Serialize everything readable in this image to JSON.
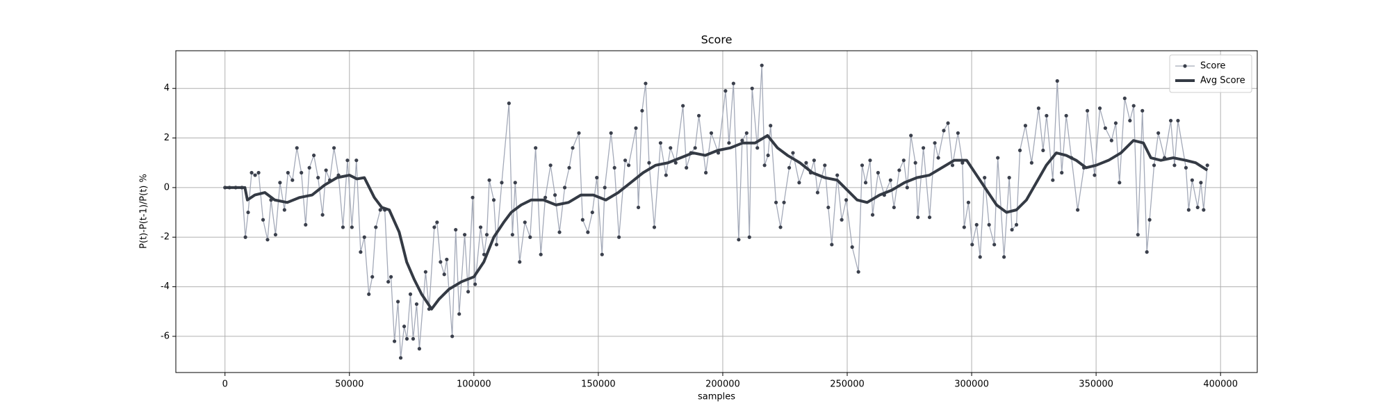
{
  "chart_data": {
    "type": "line",
    "title": "Score",
    "x_label": "samples",
    "y_label": "P(t)-P(t-1)/P(t) %",
    "xlim": [
      -19750,
      414750
    ],
    "ylim": [
      -7.46,
      5.52
    ],
    "xticks": [
      0,
      50000,
      100000,
      150000,
      200000,
      250000,
      300000,
      350000,
      400000
    ],
    "yticks": [
      -6,
      -4,
      -2,
      0,
      2,
      4
    ],
    "grid": true,
    "legend": "upper right",
    "series": [
      {
        "name": "Score",
        "color": "#a3a9b8",
        "marker_color": "#3b404c",
        "marker": true,
        "width": 1.3,
        "x": [
          0,
          1800,
          4300,
          6800,
          8200,
          9300,
          10700,
          12100,
          13500,
          15300,
          17100,
          18500,
          20300,
          22100,
          23900,
          25300,
          27100,
          28900,
          30700,
          32400,
          33900,
          35700,
          37400,
          39200,
          40600,
          42100,
          43800,
          45600,
          47400,
          49200,
          51000,
          52800,
          54500,
          56000,
          57800,
          59200,
          60600,
          62400,
          64200,
          65600,
          66700,
          68100,
          69500,
          70600,
          72000,
          73100,
          74500,
          75600,
          77000,
          78100,
          80600,
          82000,
          84100,
          85200,
          86600,
          88100,
          89100,
          91300,
          92700,
          94100,
          96300,
          97700,
          99500,
          100500,
          102700,
          104100,
          105200,
          106200,
          108000,
          109100,
          111200,
          114100,
          115500,
          116600,
          118400,
          120500,
          122600,
          124800,
          126900,
          128700,
          130800,
          132600,
          134400,
          136500,
          138300,
          139700,
          142200,
          143700,
          145800,
          147600,
          149400,
          151500,
          152600,
          155100,
          156500,
          158300,
          160800,
          162200,
          165100,
          166100,
          167600,
          169000,
          170400,
          172500,
          175000,
          177200,
          179000,
          181100,
          184000,
          185400,
          187200,
          188900,
          190400,
          193200,
          195400,
          198200,
          201100,
          202500,
          204300,
          206400,
          207800,
          209600,
          210700,
          211800,
          213900,
          215700,
          216800,
          218200,
          219200,
          221400,
          223200,
          224600,
          226700,
          228200,
          230700,
          233500,
          235300,
          236700,
          238100,
          241000,
          242400,
          243800,
          246000,
          247800,
          249600,
          252000,
          254500,
          256000,
          257400,
          259200,
          260200,
          262400,
          264900,
          267400,
          268800,
          270900,
          272700,
          274100,
          275600,
          277400,
          278400,
          280600,
          283100,
          285200,
          286600,
          288800,
          290500,
          292300,
          294500,
          296300,
          297000,
          298700,
          300200,
          302000,
          303400,
          305200,
          307000,
          309100,
          310500,
          313000,
          315100,
          316200,
          318000,
          319400,
          321600,
          324100,
          326900,
          328700,
          330100,
          332600,
          334400,
          336200,
          338000,
          340100,
          342600,
          345100,
          346500,
          349400,
          351500,
          353700,
          356200,
          357900,
          359400,
          361500,
          363600,
          365100,
          366800,
          368600,
          370400,
          371500,
          373300,
          375000,
          377500,
          380000,
          381500,
          382900,
          386100,
          387200,
          388600,
          390800,
          392100,
          393200,
          394700
        ],
        "values": [
          0,
          0,
          0,
          0,
          -2.0,
          -1.0,
          0.6,
          0.5,
          0.6,
          -1.3,
          -2.1,
          -0.5,
          -1.9,
          0.2,
          -0.9,
          0.6,
          0.3,
          1.6,
          0.6,
          -1.5,
          0.8,
          1.3,
          0.4,
          -1.1,
          0.7,
          0.3,
          1.6,
          0.5,
          -1.6,
          1.1,
          -1.6,
          1.1,
          -2.6,
          -2.0,
          -4.3,
          -3.6,
          -1.6,
          -0.9,
          -0.9,
          -3.8,
          -3.6,
          -6.2,
          -4.6,
          -6.87,
          -5.6,
          -6.1,
          -4.3,
          -6.1,
          -4.7,
          -6.5,
          -3.4,
          -4.9,
          -1.6,
          -1.4,
          -3.0,
          -3.5,
          -2.9,
          -6.0,
          -1.7,
          -5.1,
          -1.9,
          -4.2,
          -0.4,
          -3.9,
          -1.6,
          -2.7,
          -1.9,
          0.3,
          -0.5,
          -2.3,
          0.2,
          3.4,
          -1.9,
          0.2,
          -3.0,
          -1.4,
          -2.0,
          1.6,
          -2.7,
          -0.4,
          0.9,
          -0.3,
          -1.8,
          0.0,
          0.8,
          1.6,
          2.2,
          -1.3,
          -1.8,
          -1.0,
          0.4,
          -2.7,
          0.0,
          2.2,
          0.8,
          -2.0,
          1.1,
          0.9,
          2.4,
          -0.8,
          3.1,
          4.2,
          1.0,
          -1.6,
          1.8,
          0.5,
          1.6,
          1.0,
          3.3,
          0.8,
          1.4,
          1.6,
          2.9,
          0.6,
          2.2,
          1.4,
          3.9,
          1.8,
          4.2,
          -2.1,
          1.9,
          2.2,
          -2.0,
          4.0,
          1.6,
          4.93,
          0.9,
          1.3,
          2.5,
          -0.6,
          -1.6,
          -0.6,
          0.8,
          1.4,
          0.2,
          1.0,
          0.6,
          1.1,
          -0.2,
          0.9,
          -0.8,
          -2.3,
          0.5,
          -1.3,
          -0.5,
          -2.4,
          -3.4,
          0.9,
          0.2,
          1.1,
          -1.1,
          0.6,
          -0.3,
          0.3,
          -0.8,
          0.7,
          1.1,
          0.0,
          2.1,
          1.0,
          -1.2,
          1.6,
          -1.2,
          1.8,
          1.2,
          2.3,
          2.6,
          0.9,
          2.2,
          1.0,
          -1.6,
          -0.6,
          -2.3,
          -1.5,
          -2.8,
          0.4,
          -1.5,
          -2.3,
          1.2,
          -2.8,
          0.4,
          -1.7,
          -1.5,
          1.5,
          2.5,
          1.0,
          3.2,
          1.5,
          2.9,
          0.3,
          4.3,
          0.6,
          2.9,
          1.2,
          -0.9,
          0.8,
          3.1,
          0.5,
          3.2,
          2.4,
          1.9,
          2.6,
          0.2,
          3.6,
          2.7,
          3.3,
          -1.9,
          3.1,
          -2.6,
          -1.3,
          0.9,
          2.2,
          1.2,
          2.7,
          0.9,
          2.7,
          0.8,
          -0.9,
          0.3,
          -0.8,
          0.2,
          -0.9,
          0.9
        ]
      },
      {
        "name": "Avg Score",
        "color": "#343a44",
        "marker": false,
        "width": 4,
        "x": [
          0,
          8000,
          9000,
          12000,
          16000,
          20000,
          25000,
          30000,
          35000,
          40000,
          45000,
          50000,
          53000,
          56000,
          60000,
          63000,
          66000,
          70000,
          73000,
          76000,
          79000,
          83000,
          86000,
          90000,
          95000,
          100000,
          104000,
          108000,
          112000,
          115000,
          119000,
          123000,
          128000,
          133000,
          138000,
          143000,
          148000,
          153000,
          158000,
          163000,
          168000,
          173000,
          178000,
          183000,
          188000,
          193000,
          198000,
          203000,
          208000,
          213000,
          218000,
          222000,
          226000,
          231000,
          236000,
          241000,
          246000,
          250000,
          254000,
          258000,
          263000,
          268000,
          273000,
          278000,
          283000,
          288000,
          293000,
          298000,
          302000,
          306000,
          310000,
          314000,
          318000,
          322000,
          326000,
          330000,
          334000,
          338000,
          342000,
          346000,
          350000,
          355000,
          360000,
          365000,
          369000,
          372000,
          376000,
          381000,
          386000,
          390000,
          394700
        ],
        "values": [
          0,
          0,
          -0.5,
          -0.3,
          -0.2,
          -0.5,
          -0.6,
          -0.4,
          -0.3,
          0.1,
          0.4,
          0.5,
          0.35,
          0.4,
          -0.4,
          -0.8,
          -0.9,
          -1.8,
          -3.0,
          -3.7,
          -4.3,
          -4.9,
          -4.5,
          -4.1,
          -3.8,
          -3.6,
          -3.0,
          -2.0,
          -1.4,
          -1.0,
          -0.7,
          -0.5,
          -0.5,
          -0.7,
          -0.6,
          -0.3,
          -0.3,
          -0.5,
          -0.2,
          0.2,
          0.6,
          0.9,
          1.0,
          1.2,
          1.4,
          1.3,
          1.5,
          1.6,
          1.8,
          1.8,
          2.1,
          1.6,
          1.3,
          1.0,
          0.6,
          0.4,
          0.3,
          -0.1,
          -0.5,
          -0.6,
          -0.3,
          -0.1,
          0.2,
          0.4,
          0.5,
          0.8,
          1.1,
          1.1,
          0.5,
          -0.1,
          -0.7,
          -1.0,
          -0.9,
          -0.5,
          0.2,
          0.9,
          1.4,
          1.3,
          1.1,
          0.8,
          0.9,
          1.1,
          1.4,
          1.9,
          1.8,
          1.2,
          1.1,
          1.2,
          1.1,
          1.0,
          0.7
        ]
      }
    ]
  }
}
